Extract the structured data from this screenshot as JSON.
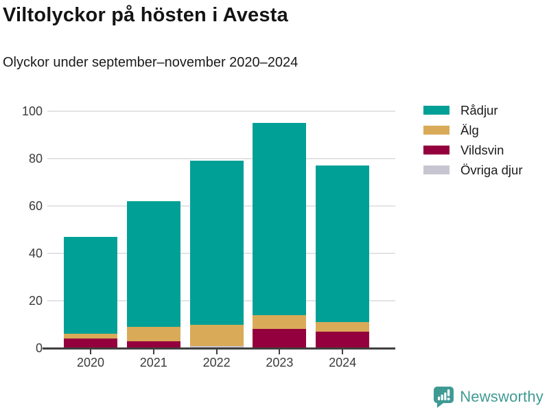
{
  "header": {
    "title": "Viltolyckor på hösten i Avesta",
    "subtitle": "Olyckor under september–november 2020–2024"
  },
  "chart_data": {
    "type": "bar",
    "stacked": true,
    "title": "Viltolyckor på hösten i Avesta",
    "subtitle": "Olyckor under september–november 2020–2024",
    "categories": [
      "2020",
      "2021",
      "2022",
      "2023",
      "2024"
    ],
    "series": [
      {
        "name": "Rådjur",
        "color": "#00a096",
        "values": [
          41,
          53,
          69,
          81,
          66
        ]
      },
      {
        "name": "Älg",
        "color": "#d9aa58",
        "values": [
          2,
          6,
          9,
          6,
          4
        ]
      },
      {
        "name": "Vildsvin",
        "color": "#94003d",
        "values": [
          4,
          3,
          0,
          8,
          7
        ]
      },
      {
        "name": "Övriga djur",
        "color": "#c6c5d0",
        "values": [
          0,
          0,
          1,
          0,
          0
        ]
      }
    ],
    "stack_order_bottom_to_top": [
      "Övriga djur",
      "Vildsvin",
      "Älg",
      "Rådjur"
    ],
    "totals": [
      47,
      62,
      79,
      95,
      77
    ],
    "xlabel": "",
    "ylabel": "",
    "ylim": [
      0,
      100
    ],
    "yticks": [
      0,
      20,
      40,
      60,
      80,
      100
    ],
    "grid": true,
    "legend_position": "top-right"
  },
  "colors": {
    "grid": "#e3e3e6",
    "axis": "#3f3f3f",
    "tick_text": "#3a3a3a",
    "brand": "#3f9a94"
  },
  "footer": {
    "brand": "Newsworthy"
  }
}
